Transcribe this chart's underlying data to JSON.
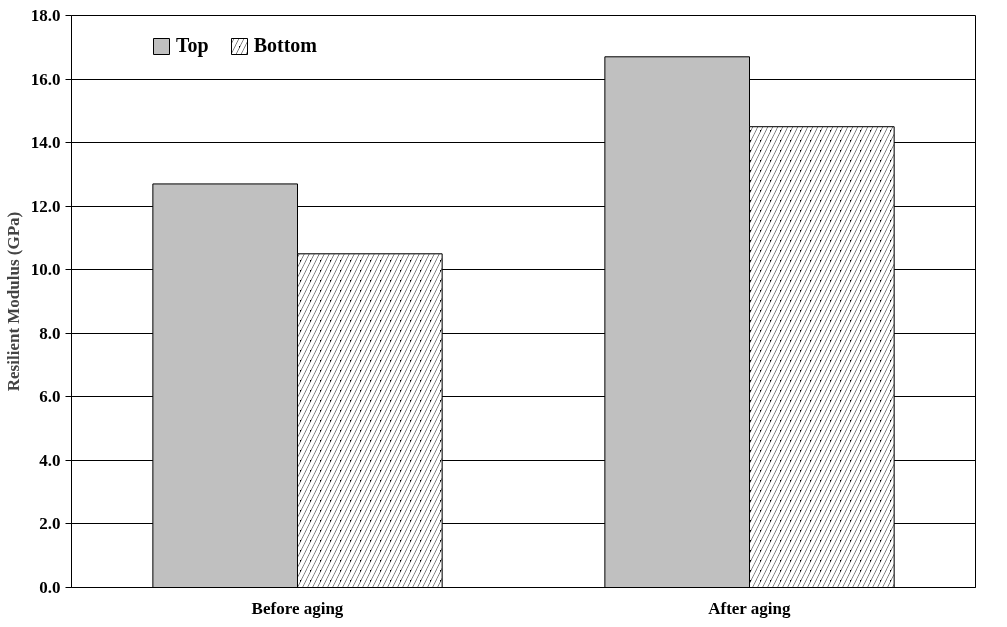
{
  "chart_data": {
    "type": "bar",
    "ylabel": "Resilient Modulus (GPa)",
    "categories": [
      "Before aging",
      "After aging"
    ],
    "series": [
      {
        "name": "Top",
        "color": "#c0c0c0",
        "values": [
          12.7,
          16.7
        ]
      },
      {
        "name": "Bottom",
        "color": "#000000",
        "values": [
          10.5,
          14.5
        ]
      }
    ],
    "ylim": [
      0,
      18
    ],
    "yticks": [
      {
        "value": 0,
        "label": "0.0"
      },
      {
        "value": 2,
        "label": "2.0"
      },
      {
        "value": 4,
        "label": "4.0"
      },
      {
        "value": 6,
        "label": "6.0"
      },
      {
        "value": 8,
        "label": "8.0"
      },
      {
        "value": 10,
        "label": "10.0"
      },
      {
        "value": 12,
        "label": "12.0"
      },
      {
        "value": 14,
        "label": "14.0"
      },
      {
        "value": 16,
        "label": "16.0"
      },
      {
        "value": 18,
        "label": "18.0"
      }
    ],
    "grid": "y",
    "legend": "top left"
  }
}
